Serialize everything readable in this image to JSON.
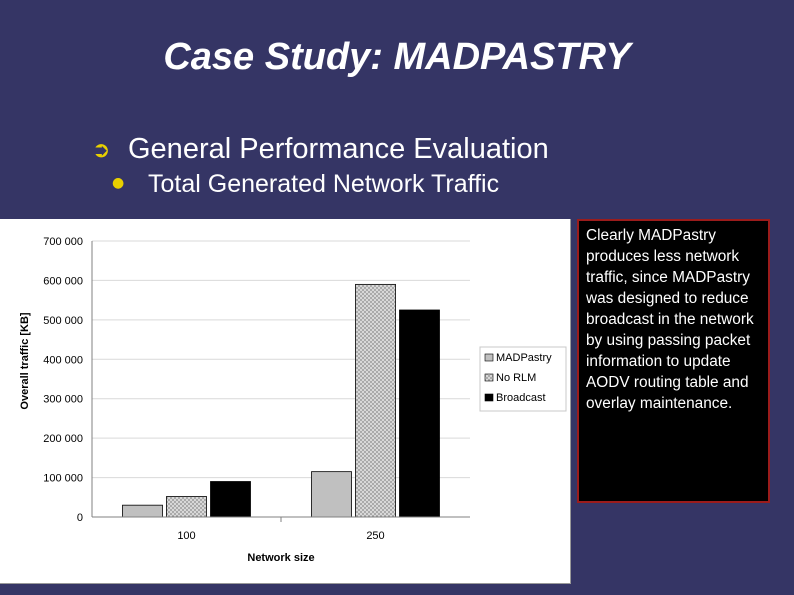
{
  "slide": {
    "title": "Case Study: MADPASTRY",
    "bullet1": "General Performance Evaluation",
    "bullet2": "Total Generated Network Traffic",
    "note": "Clearly MADPastry produces less network traffic, since MADPastry was designed to reduce broadcast in the network by using passing packet information to update AODV routing table and overlay maintenance."
  },
  "icons": {
    "bullet1": "arrow-bullet-icon",
    "bullet2": "dot-bullet-icon"
  },
  "colors": {
    "background": "#353565",
    "note_border": "#9b1c1c",
    "bullet": "#e8d000"
  },
  "chart_data": {
    "type": "bar",
    "categories": [
      "100",
      "250"
    ],
    "series": [
      {
        "name": "MADPastry",
        "values": [
          30000,
          115000
        ]
      },
      {
        "name": "No RLM",
        "values": [
          52000,
          590000
        ]
      },
      {
        "name": "Broadcast",
        "values": [
          90000,
          525000
        ]
      }
    ],
    "xlabel": "Network size",
    "ylabel": "Overall traffic [KB]",
    "ylim": [
      0,
      700000
    ],
    "yticks": [
      "0",
      "100 000",
      "200 000",
      "300 000",
      "400 000",
      "500 000",
      "600 000",
      "700 000"
    ],
    "grid": true,
    "legend": "right"
  }
}
